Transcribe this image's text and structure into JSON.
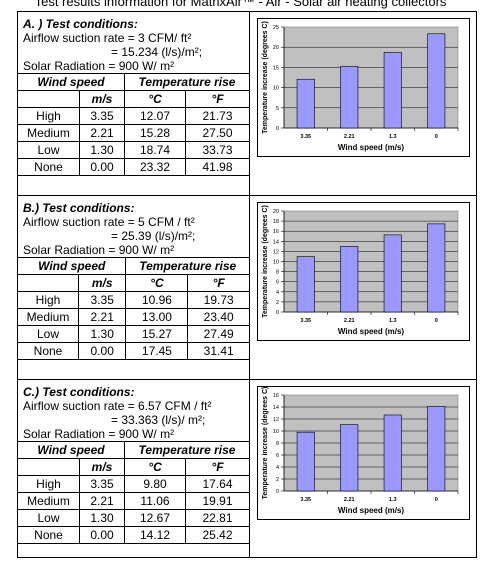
{
  "page_title": "Test results information for MatrixAir™ - Air - Solar air heating collectors",
  "table_headers": {
    "wind_speed": "Wind speed",
    "temperature_rise": "Temperature rise",
    "unit_ms": "m/s",
    "unit_c": "°C",
    "unit_f": "°F"
  },
  "sections": [
    {
      "heading": "A. ) Test conditions:",
      "airflow_line1": "Airflow suction rate = 3 CFM/ ft²",
      "airflow_line2": "= 15.234 (l/s)/m²;",
      "solar": "Solar Radiation = 900 W/ m²",
      "rows": [
        {
          "label": "High",
          "ms": "3.35",
          "c": "12.07",
          "f": "21.73"
        },
        {
          "label": "Medium",
          "ms": "2.21",
          "c": "15.28",
          "f": "27.50"
        },
        {
          "label": "Low",
          "ms": "1.30",
          "c": "18.74",
          "f": "33.73"
        },
        {
          "label": "None",
          "ms": "0.00",
          "c": "23.32",
          "f": "41.98"
        }
      ]
    },
    {
      "heading": "B.) Test conditions:",
      "airflow_line1": "Airflow suction rate = 5 CFM / ft²",
      "airflow_line2": "= 25.39 (l/s)/m²;",
      "solar": "Solar Radiation = 900 W/ m²",
      "rows": [
        {
          "label": "High",
          "ms": "3.35",
          "c": "10.96",
          "f": "19.73"
        },
        {
          "label": "Medium",
          "ms": "2.21",
          "c": "13.00",
          "f": "23.40"
        },
        {
          "label": "Low",
          "ms": "1.30",
          "c": "15.27",
          "f": "27.49"
        },
        {
          "label": "None",
          "ms": "0.00",
          "c": "17.45",
          "f": "31.41"
        }
      ]
    },
    {
      "heading": "C.) Test conditions:",
      "airflow_line1": "Airflow suction rate = 6.57 CFM / ft²",
      "airflow_line2": "= 33.363 (l/s)/ m²;",
      "solar": "Solar Radiation = 900 W/ m²",
      "rows": [
        {
          "label": "High",
          "ms": "3.35",
          "c": "9.80",
          "f": "17.64"
        },
        {
          "label": "Medium",
          "ms": "2.21",
          "c": "11.06",
          "f": "19.91"
        },
        {
          "label": "Low",
          "ms": "1.30",
          "c": "12.67",
          "f": "22.81"
        },
        {
          "label": "None",
          "ms": "0.00",
          "c": "14.12",
          "f": "25.42"
        }
      ]
    }
  ],
  "chart_data": [
    {
      "type": "bar",
      "categories": [
        "3.35",
        "2.21",
        "1.3",
        "0"
      ],
      "values": [
        12.07,
        15.28,
        18.74,
        23.32
      ],
      "xlabel": "Wind speed (m/s)",
      "ylabel": "Temperature increase (degrees C)",
      "ylim": [
        0,
        25
      ],
      "ytick_step": 5,
      "grid": true,
      "bar_color": "#9999ff",
      "plot_bg": "#c0c0c0"
    },
    {
      "type": "bar",
      "categories": [
        "3.35",
        "2.21",
        "1.3",
        "0"
      ],
      "values": [
        10.96,
        13.0,
        15.27,
        17.45
      ],
      "xlabel": "Wind speed (m/s)",
      "ylabel": "Temperature increase (degrees C)",
      "ylim": [
        0,
        20
      ],
      "ytick_step": 2,
      "grid": true,
      "bar_color": "#9999ff",
      "plot_bg": "#c0c0c0"
    },
    {
      "type": "bar",
      "categories": [
        "3.35",
        "2.21",
        "1.3",
        "0"
      ],
      "values": [
        9.8,
        11.06,
        12.67,
        14.12
      ],
      "xlabel": "Wind speed (m/s)",
      "ylabel": "Temperature increase (degrees C)",
      "ylim": [
        0,
        16
      ],
      "ytick_step": 2,
      "grid": true,
      "bar_color": "#9999ff",
      "plot_bg": "#c0c0c0"
    }
  ]
}
